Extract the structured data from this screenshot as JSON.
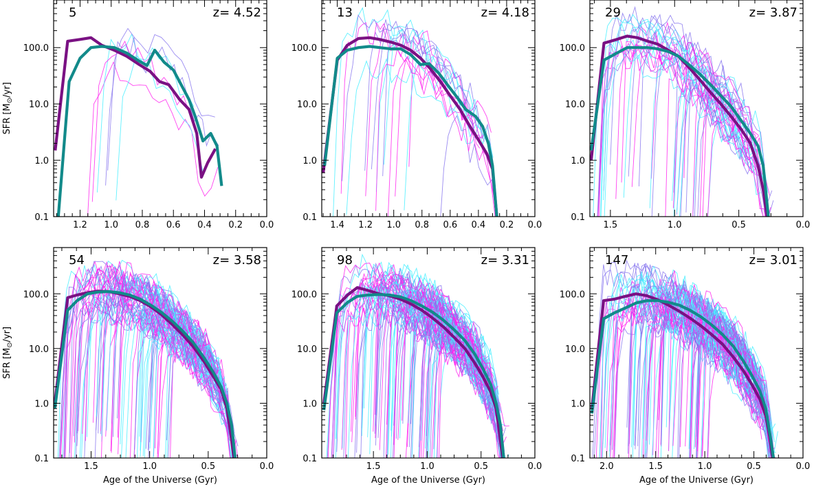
{
  "chart_data": {
    "type": "line",
    "figure": {
      "xlabel": "Age of the Universe (Gyr)",
      "ylabel_prefix": "SFR [M",
      "ylabel_sun": "⊙",
      "ylabel_suffix": "/yr]",
      "yscale": "log",
      "ylim": [
        0.1,
        700
      ],
      "yticks": [
        {
          "value": 0.1,
          "label": "0.1"
        },
        {
          "value": 1.0,
          "label": "1.0"
        },
        {
          "value": 10.0,
          "label": "10.0"
        },
        {
          "value": 100.0,
          "label": "100.0"
        }
      ],
      "colors": {
        "faint_a": "#ff22ee",
        "faint_b": "#44eeff",
        "faint_mix": "#8877ee",
        "bold_purple": "#7a1183",
        "bold_teal": "#128a8a"
      }
    },
    "panels": [
      {
        "count": "5",
        "redshift": "z= 4.52",
        "xlim": [
          1.37,
          0.0
        ],
        "xticks": [
          {
            "value": 1.2,
            "label": "1.2"
          },
          {
            "value": 1.0,
            "label": "1.0"
          },
          {
            "value": 0.8,
            "label": "0.8"
          },
          {
            "value": 0.6,
            "label": "0.6"
          },
          {
            "value": 0.4,
            "label": "0.4"
          },
          {
            "value": 0.2,
            "label": "0.2"
          },
          {
            "value": 0.0,
            "label": "0.0"
          }
        ],
        "show_ylabel": true,
        "show_xlabel": false,
        "n_faint": 6,
        "seed": 11,
        "series": [
          {
            "name": "purple",
            "x": [
              1.36,
              1.28,
              1.2,
              1.13,
              1.06,
              0.98,
              0.9,
              0.82,
              0.75,
              0.69,
              0.63,
              0.56,
              0.5,
              0.45,
              0.42,
              0.38,
              0.33
            ],
            "y": [
              1.5,
              130,
              140,
              150,
              110,
              90,
              70,
              50,
              38,
              25,
              22,
              12,
              8,
              3,
              0.5,
              0.9,
              1.6
            ]
          },
          {
            "name": "teal",
            "x": [
              1.34,
              1.27,
              1.2,
              1.13,
              1.06,
              0.98,
              0.9,
              0.83,
              0.77,
              0.72,
              0.66,
              0.6,
              0.55,
              0.5,
              0.46,
              0.41,
              0.36,
              0.32,
              0.29
            ],
            "y": [
              0.1,
              25,
              65,
              100,
              105,
              100,
              80,
              60,
              48,
              90,
              55,
              40,
              22,
              12,
              6,
              2.2,
              3,
              1.8,
              0.35
            ]
          }
        ]
      },
      {
        "count": "13",
        "redshift": "z= 4.18",
        "xlim": [
          1.51,
          0.0
        ],
        "xticks": [
          {
            "value": 1.4,
            "label": "1.4"
          },
          {
            "value": 1.2,
            "label": "1.2"
          },
          {
            "value": 1.0,
            "label": "1.0"
          },
          {
            "value": 0.8,
            "label": "0.8"
          },
          {
            "value": 0.6,
            "label": "0.6"
          },
          {
            "value": 0.4,
            "label": "0.4"
          },
          {
            "value": 0.2,
            "label": "0.2"
          },
          {
            "value": 0.0,
            "label": "0.0"
          }
        ],
        "show_ylabel": false,
        "show_xlabel": false,
        "n_faint": 16,
        "seed": 23,
        "series": [
          {
            "name": "purple",
            "x": [
              1.5,
              1.4,
              1.33,
              1.25,
              1.17,
              1.1,
              1.02,
              0.95,
              0.88,
              0.81,
              0.74,
              0.67,
              0.6,
              0.53,
              0.46,
              0.4,
              0.34,
              0.3,
              0.27
            ],
            "y": [
              0.6,
              60,
              110,
              145,
              150,
              140,
              125,
              110,
              90,
              65,
              42,
              25,
              14,
              8,
              4,
              2.3,
              1.3,
              0.7,
              0.1
            ]
          },
          {
            "name": "teal",
            "x": [
              1.49,
              1.4,
              1.33,
              1.25,
              1.17,
              1.1,
              1.02,
              0.95,
              0.88,
              0.81,
              0.75,
              0.68,
              0.62,
              0.55,
              0.49,
              0.42,
              0.37,
              0.33,
              0.3,
              0.27
            ],
            "y": [
              0.8,
              65,
              90,
              100,
              105,
              100,
              95,
              95,
              75,
              50,
              52,
              35,
              22,
              13,
              8,
              6,
              4,
              2,
              0.8,
              0.1
            ]
          }
        ]
      },
      {
        "count": "29",
        "redshift": "z= 3.87",
        "xlim": [
          1.66,
          0.0
        ],
        "xticks": [
          {
            "value": 1.5,
            "label": "1.5"
          },
          {
            "value": 1.0,
            "label": "1.0"
          },
          {
            "value": 0.5,
            "label": "0.5"
          },
          {
            "value": 0.0,
            "label": "0.0"
          }
        ],
        "show_ylabel": false,
        "show_xlabel": false,
        "n_faint": 40,
        "seed": 37,
        "series": [
          {
            "name": "purple",
            "x": [
              1.65,
              1.55,
              1.45,
              1.37,
              1.29,
              1.21,
              1.13,
              1.05,
              0.97,
              0.89,
              0.81,
              0.72,
              0.64,
              0.56,
              0.48,
              0.41,
              0.35,
              0.31,
              0.28
            ],
            "y": [
              1.0,
              120,
              140,
              160,
              150,
              130,
              115,
              90,
              70,
              45,
              28,
              16,
              10,
              6,
              3.5,
              2,
              0.8,
              0.3,
              0.1
            ]
          },
          {
            "name": "teal",
            "x": [
              1.65,
              1.55,
              1.45,
              1.37,
              1.29,
              1.21,
              1.13,
              1.05,
              0.97,
              0.89,
              0.81,
              0.72,
              0.64,
              0.56,
              0.48,
              0.41,
              0.35,
              0.31,
              0.27
            ],
            "y": [
              1.5,
              60,
              80,
              100,
              100,
              100,
              95,
              85,
              70,
              50,
              35,
              22,
              14,
              9,
              5,
              3,
              1.8,
              0.8,
              0.1
            ]
          }
        ]
      },
      {
        "count": "54",
        "redshift": "z= 3.58",
        "xlim": [
          1.82,
          0.0
        ],
        "xticks": [
          {
            "value": 1.5,
            "label": "1.5"
          },
          {
            "value": 1.0,
            "label": "1.0"
          },
          {
            "value": 0.5,
            "label": "0.5"
          },
          {
            "value": 0.0,
            "label": "0.0"
          }
        ],
        "show_ylabel": true,
        "show_xlabel": true,
        "n_faint": 75,
        "seed": 53,
        "series": [
          {
            "name": "purple",
            "x": [
              1.81,
              1.7,
              1.62,
              1.53,
              1.44,
              1.35,
              1.26,
              1.17,
              1.08,
              0.99,
              0.9,
              0.81,
              0.72,
              0.63,
              0.54,
              0.46,
              0.39,
              0.34,
              0.31,
              0.28
            ],
            "y": [
              1.0,
              85,
              95,
              105,
              112,
              110,
              100,
              90,
              75,
              58,
              42,
              28,
              18,
              11,
              6,
              3.2,
              1.8,
              0.8,
              0.3,
              0.1
            ]
          },
          {
            "name": "teal",
            "x": [
              1.81,
              1.7,
              1.62,
              1.53,
              1.44,
              1.35,
              1.26,
              1.17,
              1.08,
              0.99,
              0.9,
              0.81,
              0.72,
              0.63,
              0.54,
              0.46,
              0.39,
              0.34,
              0.3,
              0.27
            ],
            "y": [
              0.8,
              50,
              75,
              100,
              108,
              110,
              105,
              95,
              80,
              62,
              46,
              32,
              21,
              13,
              7,
              3.8,
              2,
              1,
              0.4,
              0.1
            ]
          }
        ]
      },
      {
        "count": "98",
        "redshift": "z= 3.31",
        "xlim": [
          1.98,
          0.0
        ],
        "xticks": [
          {
            "value": 1.5,
            "label": "1.5"
          },
          {
            "value": 1.0,
            "label": "1.0"
          },
          {
            "value": 0.5,
            "label": "0.5"
          },
          {
            "value": 0.0,
            "label": "0.0"
          }
        ],
        "show_ylabel": false,
        "show_xlabel": true,
        "n_faint": 85,
        "seed": 71,
        "series": [
          {
            "name": "purple",
            "x": [
              1.96,
              1.84,
              1.74,
              1.65,
              1.55,
              1.45,
              1.35,
              1.25,
              1.15,
              1.05,
              0.95,
              0.85,
              0.75,
              0.65,
              0.56,
              0.48,
              0.41,
              0.36,
              0.33,
              0.3
            ],
            "y": [
              1.0,
              60,
              95,
              130,
              115,
              100,
              92,
              80,
              65,
              50,
              36,
              25,
              16,
              10,
              5.5,
              3,
              1.6,
              0.8,
              0.3,
              0.1
            ]
          },
          {
            "name": "teal",
            "x": [
              1.96,
              1.84,
              1.74,
              1.65,
              1.55,
              1.45,
              1.35,
              1.25,
              1.15,
              1.05,
              0.95,
              0.85,
              0.75,
              0.65,
              0.56,
              0.48,
              0.41,
              0.36,
              0.32,
              0.29
            ],
            "y": [
              0.75,
              45,
              70,
              90,
              95,
              97,
              95,
              88,
              75,
              60,
              46,
              33,
              22,
              14,
              8,
              4.2,
              2.2,
              1,
              0.4,
              0.1
            ]
          }
        ]
      },
      {
        "count": "147",
        "redshift": "z= 3.01",
        "xlim": [
          2.17,
          0.0
        ],
        "xticks": [
          {
            "value": 2.0,
            "label": "2.0"
          },
          {
            "value": 1.5,
            "label": "1.5"
          },
          {
            "value": 1.0,
            "label": "1.0"
          },
          {
            "value": 0.5,
            "label": "0.5"
          },
          {
            "value": 0.0,
            "label": "0.0"
          }
        ],
        "show_ylabel": false,
        "show_xlabel": true,
        "n_faint": 85,
        "seed": 97,
        "series": [
          {
            "name": "purple",
            "x": [
              2.15,
              2.03,
              1.92,
              1.81,
              1.7,
              1.59,
              1.48,
              1.37,
              1.26,
              1.15,
              1.04,
              0.93,
              0.82,
              0.71,
              0.61,
              0.52,
              0.44,
              0.38,
              0.34,
              0.31
            ],
            "y": [
              0.8,
              75,
              80,
              90,
              100,
              92,
              78,
              62,
              48,
              36,
              26,
              18,
              12,
              7,
              4,
              2.2,
              1.2,
              0.6,
              0.25,
              0.1
            ]
          },
          {
            "name": "teal",
            "x": [
              2.15,
              2.03,
              1.92,
              1.81,
              1.7,
              1.59,
              1.48,
              1.37,
              1.26,
              1.15,
              1.04,
              0.93,
              0.82,
              0.71,
              0.61,
              0.52,
              0.44,
              0.38,
              0.34,
              0.3
            ],
            "y": [
              0.65,
              35,
              45,
              55,
              68,
              75,
              75,
              70,
              62,
              50,
              38,
              27,
              18,
              11,
              6,
              3.2,
              1.7,
              0.8,
              0.3,
              0.1
            ]
          }
        ]
      }
    ]
  }
}
